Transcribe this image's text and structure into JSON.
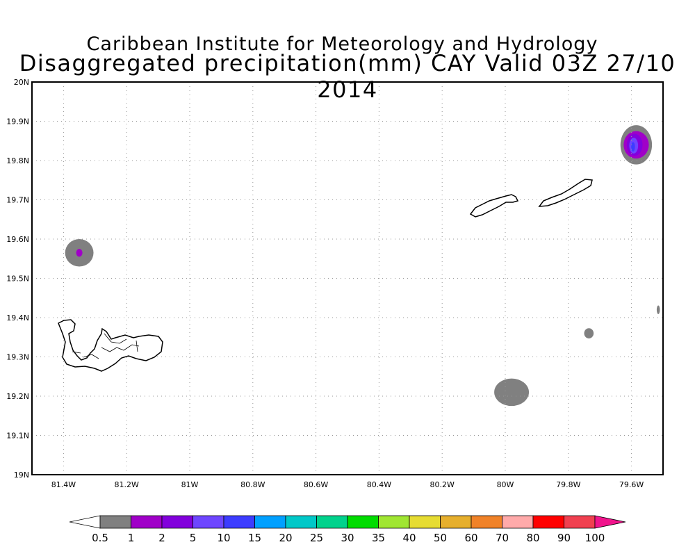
{
  "title": {
    "line1": "Caribbean Institute for Meteorology and Hydrology",
    "line2": "Disaggregated precipitation(mm) CAY Valid 03Z 27/10 2014"
  },
  "map": {
    "lon_range": [
      -81.5,
      -79.5
    ],
    "lat_range": [
      19.0,
      20.0
    ],
    "grid": true,
    "lon_ticks": [
      {
        "value": -81.4,
        "label": "81.4W"
      },
      {
        "value": -81.2,
        "label": "81.2W"
      },
      {
        "value": -81.0,
        "label": "81W"
      },
      {
        "value": -80.8,
        "label": "80.8W"
      },
      {
        "value": -80.6,
        "label": "80.6W"
      },
      {
        "value": -80.4,
        "label": "80.4W"
      },
      {
        "value": -80.2,
        "label": "80.2W"
      },
      {
        "value": -80.0,
        "label": "80W"
      },
      {
        "value": -79.8,
        "label": "79.8W"
      },
      {
        "value": -79.6,
        "label": "79.6W"
      }
    ],
    "lat_ticks": [
      {
        "value": 19.0,
        "label": "19N"
      },
      {
        "value": 19.1,
        "label": "19.1N"
      },
      {
        "value": 19.2,
        "label": "19.2N"
      },
      {
        "value": 19.3,
        "label": "19.3N"
      },
      {
        "value": 19.4,
        "label": "19.4N"
      },
      {
        "value": 19.5,
        "label": "19.5N"
      },
      {
        "value": 19.6,
        "label": "19.6N"
      },
      {
        "value": 19.7,
        "label": "19.7N"
      },
      {
        "value": 19.8,
        "label": "19.8N"
      },
      {
        "value": 19.9,
        "label": "19.9N"
      },
      {
        "value": 20.0,
        "label": "20N"
      }
    ],
    "precip_cells": [
      {
        "lon": -81.35,
        "lat": 19.565,
        "rx_deg": 0.045,
        "ry_deg": 0.035,
        "level_mm": 0.5
      },
      {
        "lon": -81.35,
        "lat": 19.565,
        "rx_deg": 0.01,
        "ry_deg": 0.01,
        "level_mm": 1
      },
      {
        "lon": -79.98,
        "lat": 19.21,
        "rx_deg": 0.055,
        "ry_deg": 0.035,
        "level_mm": 0.5
      },
      {
        "lon": -79.735,
        "lat": 19.36,
        "rx_deg": 0.015,
        "ry_deg": 0.013,
        "level_mm": 0.5
      },
      {
        "lon": -79.515,
        "lat": 19.42,
        "rx_deg": 0.005,
        "ry_deg": 0.011,
        "level_mm": 0.5
      },
      {
        "lon": -79.585,
        "lat": 19.84,
        "rx_deg": 0.05,
        "ry_deg": 0.05,
        "level_mm": 0.5
      },
      {
        "lon": -79.585,
        "lat": 19.84,
        "rx_deg": 0.04,
        "ry_deg": 0.035,
        "level_mm": 1
      },
      {
        "lon": -79.59,
        "lat": 19.84,
        "rx_deg": 0.025,
        "ry_deg": 0.028,
        "level_mm": 2
      },
      {
        "lon": -79.593,
        "lat": 19.838,
        "rx_deg": 0.014,
        "ry_deg": 0.02,
        "level_mm": 5
      },
      {
        "lon": -79.595,
        "lat": 19.835,
        "rx_deg": 0.006,
        "ry_deg": 0.012,
        "level_mm": 10
      }
    ]
  },
  "colorbar": {
    "colors": [
      "#ffffff",
      "#808080",
      "#a000c8",
      "#8200dc",
      "#6e46ff",
      "#3c3cff",
      "#00a0ff",
      "#00c8c8",
      "#00d28c",
      "#00dc00",
      "#a0e632",
      "#e6dc32",
      "#e6af2d",
      "#f08228",
      "#ffaaaa",
      "#ff0000",
      "#f04050",
      "#f0148c"
    ],
    "labels": [
      "0.5",
      "1",
      "2",
      "5",
      "10",
      "15",
      "20",
      "25",
      "30",
      "35",
      "40",
      "50",
      "60",
      "70",
      "80",
      "90",
      "100"
    ]
  }
}
